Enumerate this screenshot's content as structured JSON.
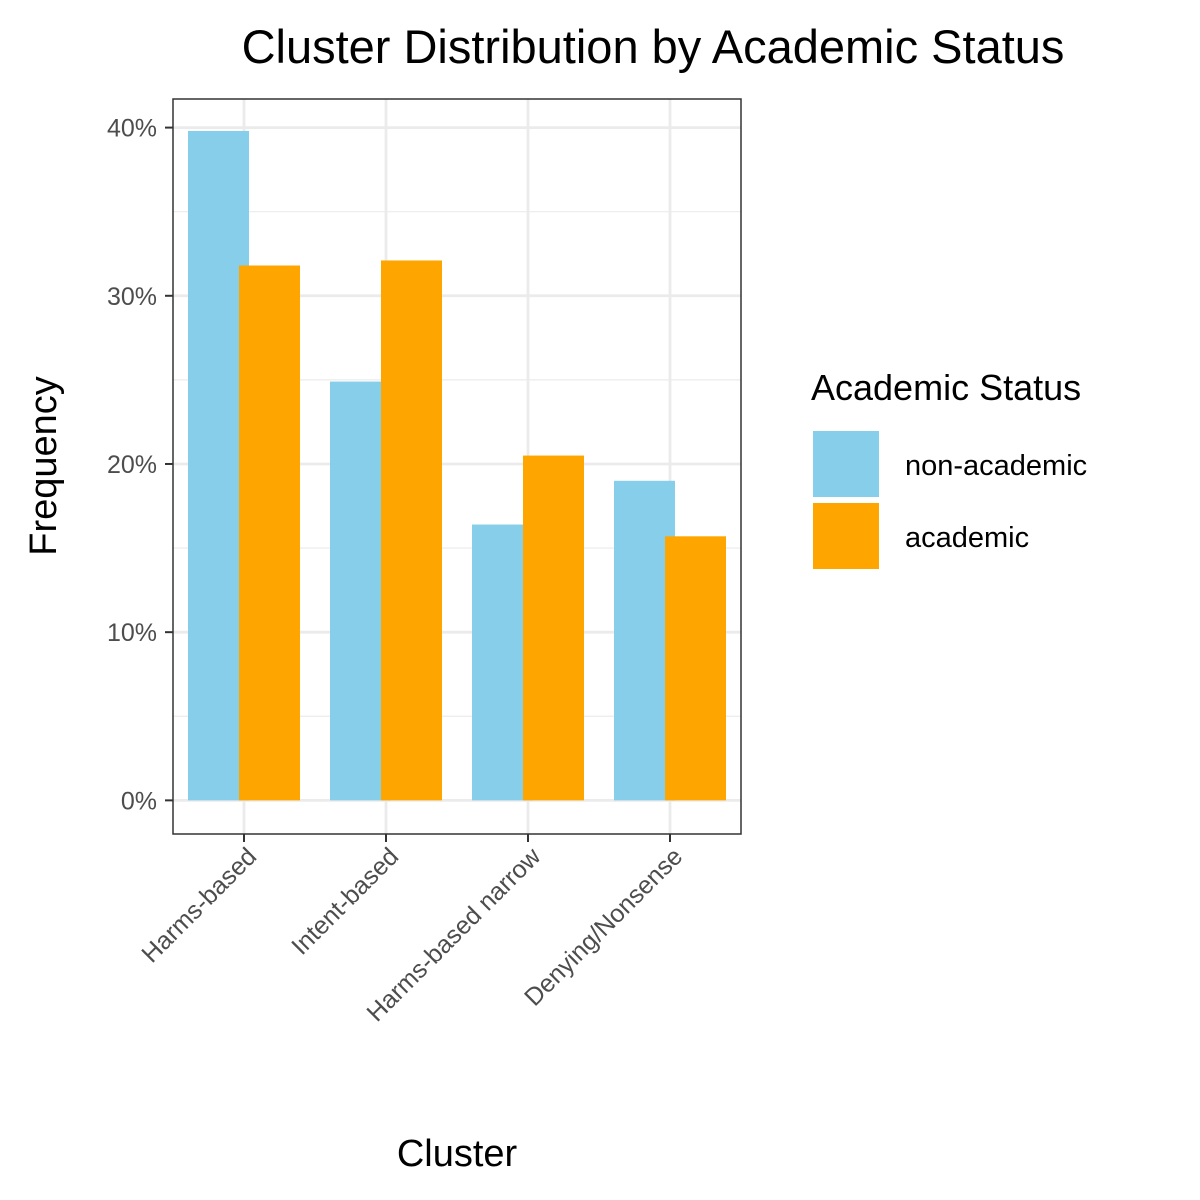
{
  "chart_data": {
    "type": "bar",
    "title": "Cluster Distribution by Academic Status",
    "xlabel": "Cluster",
    "ylabel": "Frequency",
    "categories": [
      "Harms-based",
      "Intent-based",
      "Harms-based narrow",
      "Denying/Nonsense"
    ],
    "series": [
      {
        "name": "non-academic",
        "color": "#87CEEB",
        "values": [
          39.8,
          24.9,
          16.4,
          19.0
        ]
      },
      {
        "name": "academic",
        "color": "#FFA500",
        "values": [
          31.8,
          32.1,
          20.5,
          15.7
        ]
      }
    ],
    "ylim": [
      -2,
      41.7
    ],
    "yticks": [
      0,
      10,
      20,
      30,
      40
    ],
    "ytick_labels": [
      "0%",
      "10%",
      "20%",
      "30%",
      "40%"
    ],
    "legend": {
      "title": "Academic Status",
      "position": "right"
    },
    "grid": true
  }
}
